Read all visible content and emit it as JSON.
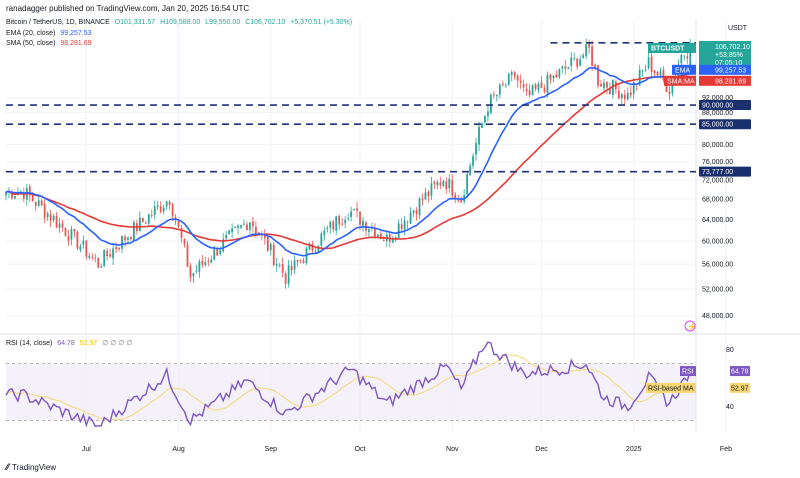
{
  "header": {
    "published": "ranadagger published on TradingView.com, Jan 20, 2025 16:54 UTC"
  },
  "ohlc_line": {
    "symbol": "Bitcoin / TetherUS, 1D, BINANCE",
    "open": "O101,331.57",
    "high": "H109,588.00",
    "low": "L99,550.00",
    "close": "C106,702.10",
    "change": "+5,370.51 (+5.30%)"
  },
  "indicators": {
    "ema_label": "EMA (20, close)",
    "ema_value": "99,257.53",
    "sma_label": "SMA (50, close)",
    "sma_value": "98,281.69",
    "rsi_label": "RSI (14, close)",
    "rsi_value": "64.78",
    "rsi_ma_value": "52.97",
    "rsi_extra": "∅ ∅ ∅ ∅"
  },
  "footer": {
    "brand": "TradingView"
  },
  "colors": {
    "up": "#26a69a",
    "down": "#ef5350",
    "ema": "#2962ff",
    "sma": "#e53935",
    "rsi": "#7e57c2",
    "rsi_ma": "#f7d774",
    "level_line": "#1f3278",
    "tag_blue": "#1a2f6e"
  },
  "chart_data": [
    {
      "type": "candlestick",
      "title": "Bitcoin / TetherUS, 1D, BINANCE",
      "currency": "USDT",
      "ylim": [
        46000,
        116000
      ],
      "y_ticks": [
        48000,
        52000,
        56000,
        60000,
        64000,
        68000,
        72000,
        76000,
        80000,
        88000,
        92000
      ],
      "y_tick_labels": [
        "48,000.00",
        "52,000.00",
        "56,000.00",
        "60,000.00",
        "64,000.00",
        "68,000.00",
        "72,000.00",
        "76,000.00",
        "80,000.00",
        "88,000.00",
        "92,000.00"
      ],
      "x_tick_labels": [
        "Jul",
        "Aug",
        "Sep",
        "Oct",
        "Nov",
        "Dec",
        "2025",
        "Feb"
      ],
      "horizontal_levels": [
        {
          "value": 73777,
          "label": "73,777.00"
        },
        {
          "value": 85000,
          "label": "85,000.00"
        },
        {
          "value": 90000,
          "label": "90,000.00"
        },
        {
          "value": 108353,
          "label": ""
        }
      ],
      "last_price_tag": {
        "symbol": "BTCUSDT",
        "price": "106,702.10",
        "change": "+53.85%",
        "countdown": "07:05:10"
      },
      "ema_tag": {
        "label": "EMA",
        "value": "99,257.53"
      },
      "sma_tag": {
        "label": "SMA:MA",
        "value": "98,281.69"
      },
      "key_points": [
        {
          "date": "2024-06-10",
          "close": 69500
        },
        {
          "date": "2024-07-05",
          "close": 56000
        },
        {
          "date": "2024-07-29",
          "close": 68200
        },
        {
          "date": "2024-08-05",
          "close": 54000
        },
        {
          "date": "2024-08-25",
          "close": 64000
        },
        {
          "date": "2024-09-06",
          "close": 53900
        },
        {
          "date": "2024-09-27",
          "close": 65800
        },
        {
          "date": "2024-10-10",
          "close": 60300
        },
        {
          "date": "2024-10-29",
          "close": 72300
        },
        {
          "date": "2024-11-04",
          "close": 68000
        },
        {
          "date": "2024-11-13",
          "close": 90000
        },
        {
          "date": "2024-11-22",
          "close": 98400
        },
        {
          "date": "2024-11-26",
          "close": 91900
        },
        {
          "date": "2024-12-05",
          "close": 97500
        },
        {
          "date": "2024-12-17",
          "close": 106000
        },
        {
          "date": "2024-12-20",
          "close": 97000
        },
        {
          "date": "2024-12-30",
          "close": 92600
        },
        {
          "date": "2025-01-06",
          "close": 102000
        },
        {
          "date": "2025-01-13",
          "close": 94500
        },
        {
          "date": "2025-01-17",
          "close": 104500
        },
        {
          "date": "2025-01-20",
          "close": 106702
        }
      ]
    },
    {
      "type": "line",
      "title": "RSI (14, close)",
      "ylim": [
        22,
        88
      ],
      "y_ticks": [
        40,
        80
      ],
      "bands": [
        30,
        70
      ],
      "series": [
        {
          "name": "RSI",
          "value": 64.78
        },
        {
          "name": "RSI-based MA",
          "value": 52.97
        }
      ],
      "key_points": [
        {
          "date": "2024-06-10",
          "rsi": 48
        },
        {
          "date": "2024-07-05",
          "rsi": 26
        },
        {
          "date": "2024-07-28",
          "rsi": 62
        },
        {
          "date": "2024-08-05",
          "rsi": 30
        },
        {
          "date": "2024-08-24",
          "rsi": 58
        },
        {
          "date": "2024-09-06",
          "rsi": 35
        },
        {
          "date": "2024-09-28",
          "rsi": 66
        },
        {
          "date": "2024-10-10",
          "rsi": 42
        },
        {
          "date": "2024-10-30",
          "rsi": 68
        },
        {
          "date": "2024-11-04",
          "rsi": 52
        },
        {
          "date": "2024-11-12",
          "rsi": 85
        },
        {
          "date": "2024-11-25",
          "rsi": 63
        },
        {
          "date": "2024-12-06",
          "rsi": 66
        },
        {
          "date": "2024-12-16",
          "rsi": 70
        },
        {
          "date": "2024-12-22",
          "rsi": 46
        },
        {
          "date": "2024-12-30",
          "rsi": 40
        },
        {
          "date": "2025-01-06",
          "rsi": 60
        },
        {
          "date": "2025-01-13",
          "rsi": 42
        },
        {
          "date": "2025-01-20",
          "rsi": 64.78
        }
      ]
    }
  ]
}
